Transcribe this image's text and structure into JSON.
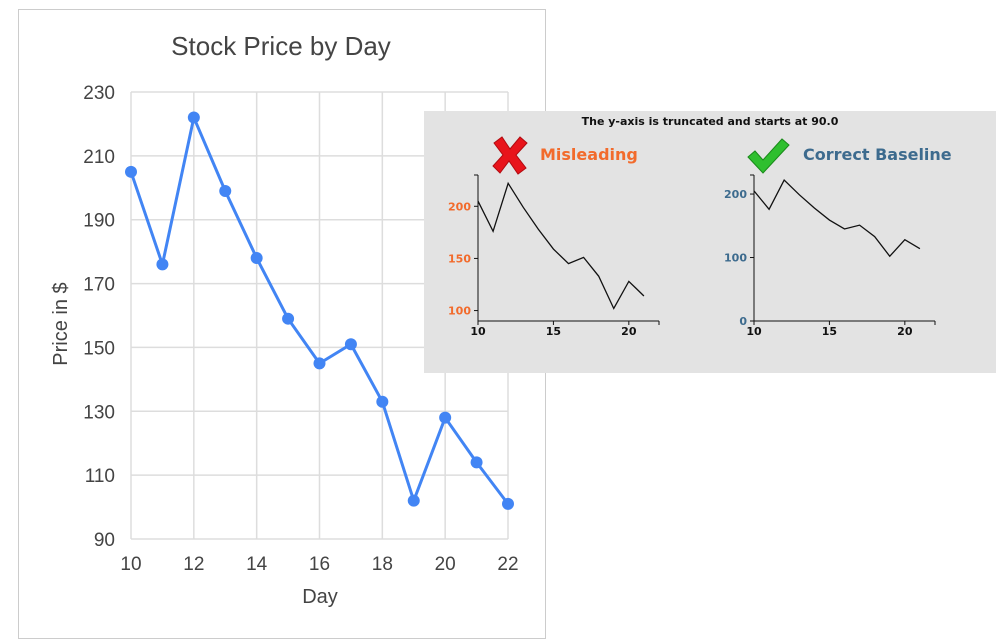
{
  "chart_data": [
    {
      "type": "line",
      "title": "Stock Price by Day",
      "xlabel": "Day",
      "ylabel": "Price in $",
      "x": [
        10,
        11,
        12,
        13,
        14,
        15,
        16,
        17,
        18,
        19,
        20,
        21,
        22
      ],
      "series": [
        {
          "values": [
            205,
            176,
            222,
            199,
            178,
            159,
            145,
            151,
            133,
            102,
            128,
            114,
            101
          ]
        }
      ],
      "xlim": [
        10,
        22
      ],
      "ylim": [
        90,
        230
      ],
      "xticks": [
        10,
        12,
        14,
        16,
        18,
        20,
        22
      ],
      "yticks": [
        90,
        110,
        130,
        150,
        170,
        190,
        210,
        230
      ],
      "grid": true,
      "colors": {
        "line": "#4285f4",
        "title": "#444444",
        "axis_text": "#444444",
        "grid": "#dddddd",
        "border": "#cccccc"
      }
    },
    {
      "type": "line",
      "title": "Misleading",
      "x": [
        10,
        11,
        12,
        13,
        14,
        15,
        16,
        17,
        18,
        19,
        20,
        21
      ],
      "series": [
        {
          "values": [
            205,
            176,
            222,
            199,
            178,
            159,
            145,
            151,
            133,
            102,
            128,
            114
          ]
        }
      ],
      "xlim": [
        10,
        22
      ],
      "ylim": [
        90,
        230
      ],
      "xticks": [
        10,
        15,
        20
      ],
      "yticks": [
        100,
        150,
        200
      ],
      "colors": {
        "label": "#f26b2c",
        "ticks": "#f26b2c",
        "line": "#111111"
      }
    },
    {
      "type": "line",
      "title": "Correct Baseline",
      "x": [
        10,
        11,
        12,
        13,
        14,
        15,
        16,
        17,
        18,
        19,
        20,
        21
      ],
      "series": [
        {
          "values": [
            205,
            176,
            222,
            199,
            178,
            159,
            145,
            151,
            133,
            102,
            128,
            114
          ]
        }
      ],
      "xlim": [
        10,
        22
      ],
      "ylim": [
        0,
        230
      ],
      "xticks": [
        10,
        15,
        20
      ],
      "yticks": [
        0,
        100,
        200
      ],
      "colors": {
        "label": "#3d6b8e",
        "ticks": "#3d6b8e",
        "line": "#111111"
      }
    }
  ],
  "overlay": {
    "title": "The y-axis is truncated and starts at 90.0",
    "misleading_label": "Misleading",
    "correct_label": "Correct Baseline",
    "misleading_icon": "red-x-icon",
    "correct_icon": "green-check-icon",
    "icon_colors": {
      "x": "#e8141b",
      "check": "#2fbf2f"
    }
  }
}
